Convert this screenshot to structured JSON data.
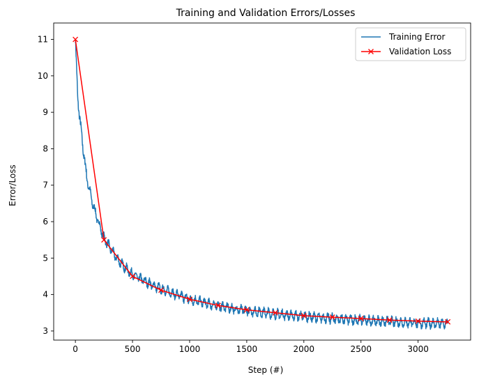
{
  "chart_data": {
    "type": "line",
    "title": "Training and Validation Errors/Losses",
    "xlabel": "Step (#)",
    "ylabel": "Error/Loss",
    "xlim": [
      -190,
      3460
    ],
    "ylim": [
      2.75,
      11.45
    ],
    "xticks": [
      0,
      500,
      1000,
      1500,
      2000,
      2500,
      3000
    ],
    "yticks": [
      3,
      4,
      5,
      6,
      7,
      8,
      9,
      10,
      11
    ],
    "grid": false,
    "legend_position": "top-right",
    "series": [
      {
        "name": "Training Error",
        "color": "#1f77b4",
        "marker": "none",
        "envelope": {
          "x": [
            0,
            20,
            60,
            100,
            150,
            200,
            250,
            300,
            350,
            400,
            450,
            500,
            600,
            700,
            800,
            900,
            1000,
            1200,
            1400,
            1600,
            1800,
            2000,
            2200,
            2400,
            2600,
            2800,
            3000,
            3200,
            3260
          ],
          "y": [
            11.0,
            9.4,
            8.2,
            7.2,
            6.5,
            6.0,
            5.55,
            5.3,
            5.05,
            4.85,
            4.7,
            4.55,
            4.38,
            4.22,
            4.1,
            3.98,
            3.87,
            3.72,
            3.6,
            3.52,
            3.45,
            3.4,
            3.35,
            3.31,
            3.28,
            3.25,
            3.22,
            3.2,
            3.2
          ]
        },
        "noise_amplitude": 0.12,
        "oscillation_period": 40
      },
      {
        "name": "Validation Loss",
        "color": "#ff0000",
        "marker": "x",
        "x": [
          0,
          250,
          500,
          750,
          1000,
          1250,
          1500,
          1750,
          2000,
          2250,
          2500,
          2750,
          3000,
          3260
        ],
        "y": [
          11.0,
          5.5,
          4.5,
          4.12,
          3.87,
          3.7,
          3.58,
          3.5,
          3.42,
          3.38,
          3.34,
          3.3,
          3.27,
          3.25
        ]
      }
    ]
  }
}
